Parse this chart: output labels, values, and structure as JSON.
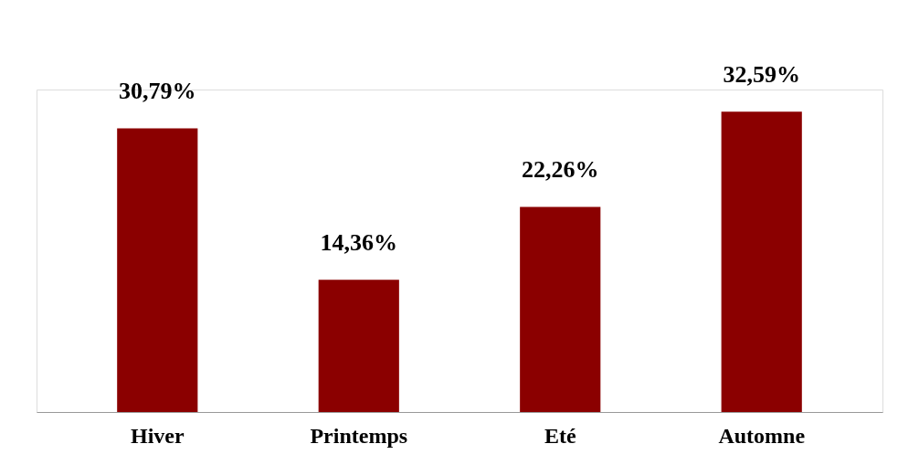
{
  "chart_data": {
    "type": "bar",
    "categories": [
      "Hiver",
      "Printemps",
      "Eté",
      "Automne"
    ],
    "values": [
      30.79,
      14.36,
      22.26,
      32.59
    ],
    "value_labels": [
      "30,79%",
      "14,36%",
      "22,26%",
      "32,59%"
    ],
    "color": "#8b0000",
    "grid": false
  }
}
